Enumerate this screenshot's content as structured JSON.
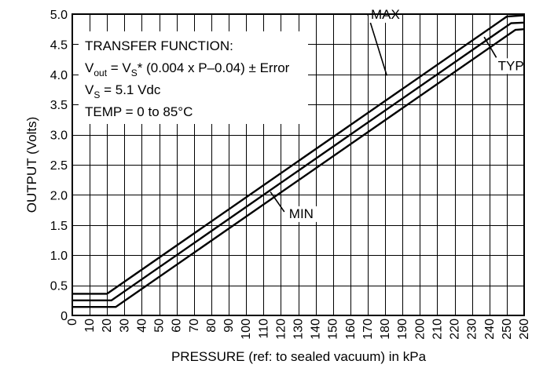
{
  "chart_data": {
    "type": "line",
    "xlabel": "PRESSURE (ref: to sealed vacuum) in kPa",
    "ylabel": "OUTPUT (Volts)",
    "xlim": [
      0,
      260
    ],
    "ylim": [
      0,
      5.0
    ],
    "x_ticks": [
      "0",
      "10",
      "20",
      "30",
      "40",
      "50",
      "60",
      "70",
      "80",
      "90",
      "100",
      "110",
      "120",
      "130",
      "140",
      "150",
      "160",
      "170",
      "180",
      "190",
      "200",
      "210",
      "220",
      "230",
      "240",
      "250",
      "260"
    ],
    "y_ticks": [
      "0",
      "0.5",
      "1.0",
      "1.5",
      "2.0",
      "2.5",
      "3.0",
      "3.5",
      "4.0",
      "4.5",
      "5.0"
    ],
    "grid": true,
    "series": [
      {
        "name": "MAX",
        "x": [
          0,
          20,
          250,
          260
        ],
        "y": [
          0.36,
          0.36,
          4.96,
          4.98
        ]
      },
      {
        "name": "TYP",
        "x": [
          0,
          22.5,
          252.5,
          260
        ],
        "y": [
          0.25,
          0.25,
          4.85,
          4.86
        ]
      },
      {
        "name": "MIN",
        "x": [
          0,
          25,
          255,
          260
        ],
        "y": [
          0.14,
          0.14,
          4.74,
          4.75
        ]
      }
    ],
    "callouts": [
      {
        "label": "MAX",
        "series": "MAX",
        "point": [
          181,
          3.98
        ],
        "anchor": [
          170,
          5.0
        ]
      },
      {
        "label": "TYP",
        "series": "TYP",
        "point": [
          237,
          4.62
        ],
        "anchor": [
          244,
          4.28
        ]
      },
      {
        "label": "MIN",
        "series": "MIN",
        "point": [
          114,
          2.05
        ],
        "anchor": [
          122,
          1.72
        ]
      }
    ],
    "annotations": {
      "line1": "TRANSFER FUNCTION:",
      "line2_pre": "V",
      "line2_sub1": "out",
      "line2_mid": " = V",
      "line2_sub2": "S",
      "line2_post": "* (0.004 x P–0.04) ± Error",
      "line3_pre": "V",
      "line3_sub": "S",
      "line3_post": " = 5.1 Vdc",
      "line4": "TEMP = 0 to 85°C"
    }
  }
}
